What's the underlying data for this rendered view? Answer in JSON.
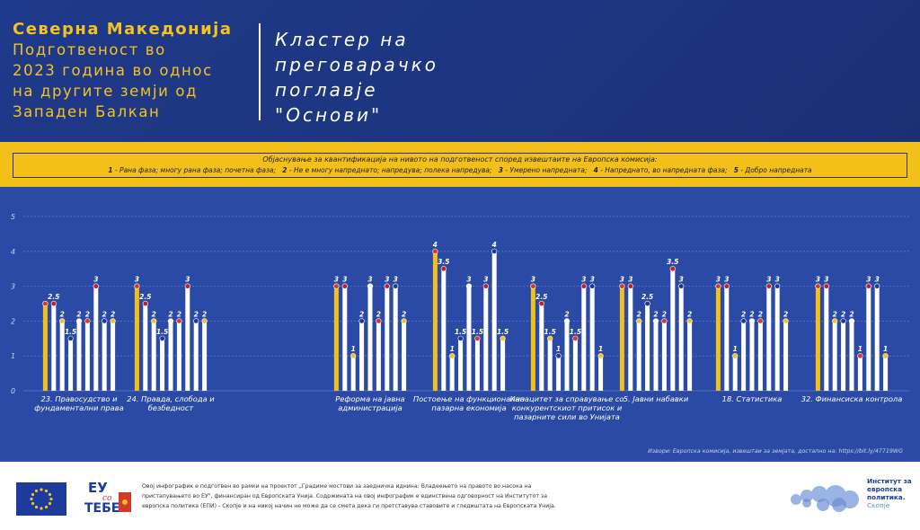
{
  "header": {
    "country": "Северна Македонија",
    "subtitle_lines": [
      "Подготвеност во",
      "2023 година во однос",
      "на другите земји од",
      "Западен Балкан"
    ],
    "cluster_lines": [
      "Кластер на",
      "преговарачко",
      "поглавје",
      "\"Основи\""
    ]
  },
  "legend": {
    "title": "Објаснување за квантификација на нивото на подготвеност според извештаите на Европска комисија:",
    "items": [
      {
        "key": "1",
        "text": "- Рана фаза; многу рана фаза; почетна фаза;"
      },
      {
        "key": "2",
        "text": "- Не е многу напреднато; напредува; полека напредува;"
      },
      {
        "key": "3",
        "text": "- Умерено напредната;"
      },
      {
        "key": "4",
        "text": "- Напреднато, во напредната фаза;"
      },
      {
        "key": "5",
        "text": "- Добро напредната"
      }
    ]
  },
  "source": "Извори: Европска комисија, извештаи за земјата, достапно на: https://bit.ly/47719WG",
  "footer": {
    "text": "Овој инфографик е подготвен во рамки на проектот „Градиме мостови за заедничка иднина: Владеењето на правото во насока на пристапувањето во ЕУ\", финансиран од Европската Унија. Содржината на овој инфографик е единствена одговорност на Институтот за европска политика (ЕПИ) - Скопје и на никој начин не може да се смета дека ги претставува ставовите и гледиштата на Европската Унија.",
    "eu_logo_text": "ЕУ со ТЕБЕ",
    "iep_name": "Институт за европска политика.",
    "iep_city": "Скопје"
  },
  "colors": {
    "header_bg": "#1e3a8a",
    "accent_yellow": "#f5c320",
    "chart_bg": "#2a4aa6",
    "bar_highlight": "#f2c019",
    "bar_default": "#ffffff"
  },
  "chart_data": {
    "type": "bar",
    "ylim": [
      0,
      5
    ],
    "yticks": [
      0,
      1,
      2,
      3,
      4,
      5
    ],
    "grid": true,
    "series_note": "each group: North Macedonia (highlighted) followed by other Western Balkan countries",
    "groups": [
      {
        "label": "23. Правосудство и фундаментални права",
        "values": [
          2.5,
          2.5,
          2,
          1.5,
          2,
          2,
          3,
          2,
          2
        ],
        "value_labels": [
          "",
          "2.5",
          "2",
          "1.5",
          "2",
          "2",
          "3",
          "2",
          "2"
        ]
      },
      {
        "label": "24. Правда, слобода и безбедност",
        "values": [
          3,
          2.5,
          2,
          1.5,
          2,
          2,
          3,
          2,
          2
        ],
        "value_labels": [
          "3",
          "2.5",
          "2",
          "1.5",
          "2",
          "2",
          "3",
          "2",
          "2"
        ]
      },
      {
        "label": "Реформа на јавна администрација",
        "values": [
          3,
          3,
          1,
          2,
          3,
          2,
          3,
          3,
          2
        ],
        "value_labels": [
          "3",
          "3",
          "1",
          "2",
          "3",
          "2",
          "3",
          "3",
          "2"
        ]
      },
      {
        "label": "Постоење на функционална пазарна економија",
        "values": [
          4,
          3.5,
          1,
          1.5,
          3,
          1.5,
          3,
          4,
          1.5
        ],
        "value_labels": [
          "4",
          "3.5",
          "1",
          "1.5",
          "3",
          "1.5",
          "3",
          "4",
          "1.5"
        ]
      },
      {
        "label": "Капацитет за справување со конкурентскиот притисок и пазарните сили во Унијата",
        "values": [
          3,
          2.5,
          1.5,
          1,
          2,
          1.5,
          3,
          3,
          1
        ],
        "value_labels": [
          "3",
          "2.5",
          "1.5",
          "1",
          "2",
          "1.5",
          "3",
          "3",
          "1"
        ]
      },
      {
        "label": "5. Јавни набавки",
        "values": [
          3,
          3,
          2,
          2.5,
          2,
          2,
          3.5,
          3,
          2
        ],
        "value_labels": [
          "3",
          "3",
          "2",
          "2.5",
          "2",
          "2",
          "3.5",
          "3",
          "2"
        ]
      },
      {
        "label": "18. Статистика",
        "values": [
          3,
          3,
          1,
          2,
          2,
          2,
          3,
          3,
          2
        ],
        "value_labels": [
          "3",
          "3",
          "1",
          "2",
          "2",
          "2",
          "3",
          "3",
          "2"
        ]
      },
      {
        "label": "32. Финансиска контрола",
        "values": [
          3,
          3,
          2,
          2,
          2,
          1,
          3,
          3,
          1
        ],
        "value_labels": [
          "3",
          "3",
          "2",
          "2",
          "2",
          "1",
          "3",
          "3",
          "1"
        ]
      }
    ]
  }
}
